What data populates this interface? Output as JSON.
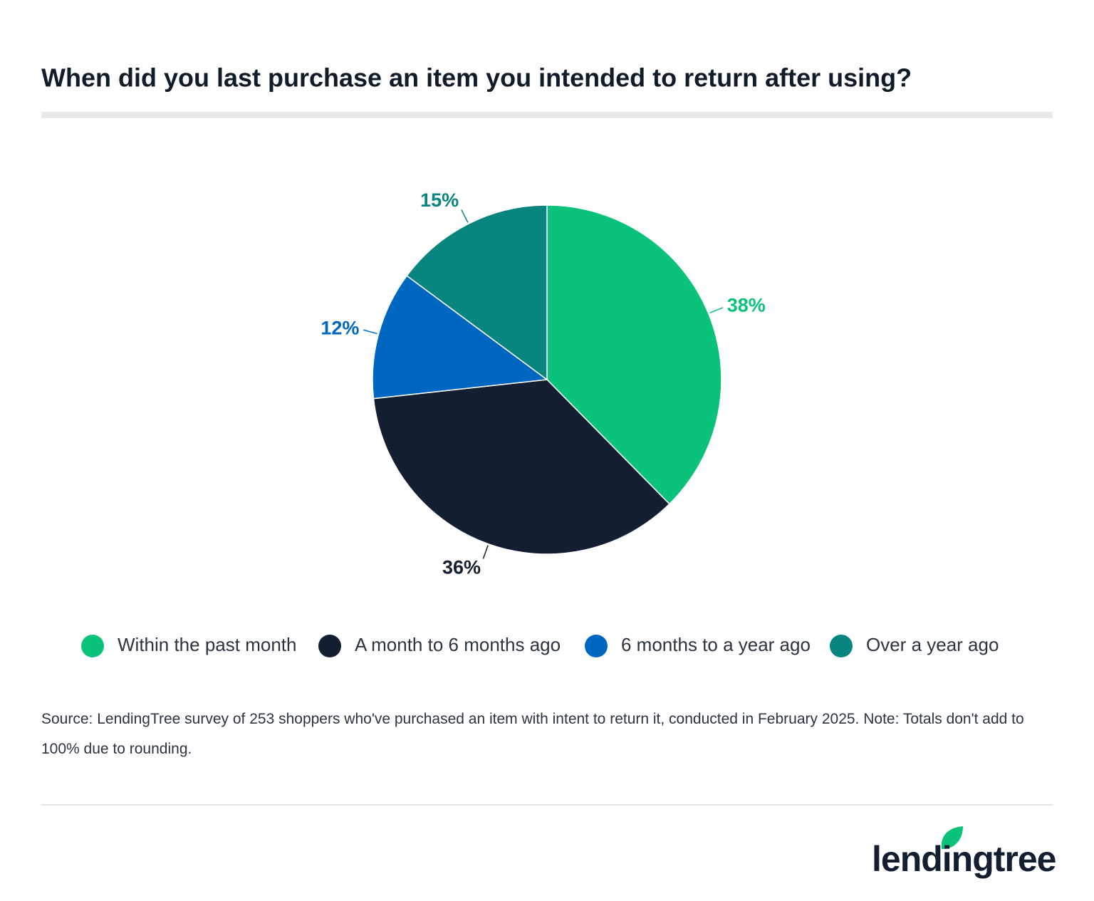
{
  "chart_data": {
    "type": "pie",
    "title": "When did you last purchase an item you intended to return after using?",
    "categories": [
      "Within the past month",
      "A month to 6 months ago",
      "6 months to a year ago",
      "Over a year ago"
    ],
    "values": [
      38,
      36,
      12,
      15
    ],
    "value_labels": [
      "38%",
      "36%",
      "12%",
      "15%"
    ],
    "colors": [
      "#0bc27a",
      "#131f30",
      "#0067c0",
      "#09857f"
    ],
    "legend": "bottom",
    "source": "Source: LendingTree survey of 253 shoppers who've purchased an item with intent to return it, conducted in February 2025. Note: Totals don't add to 100% due to rounding.",
    "brand": "lendingtree"
  }
}
